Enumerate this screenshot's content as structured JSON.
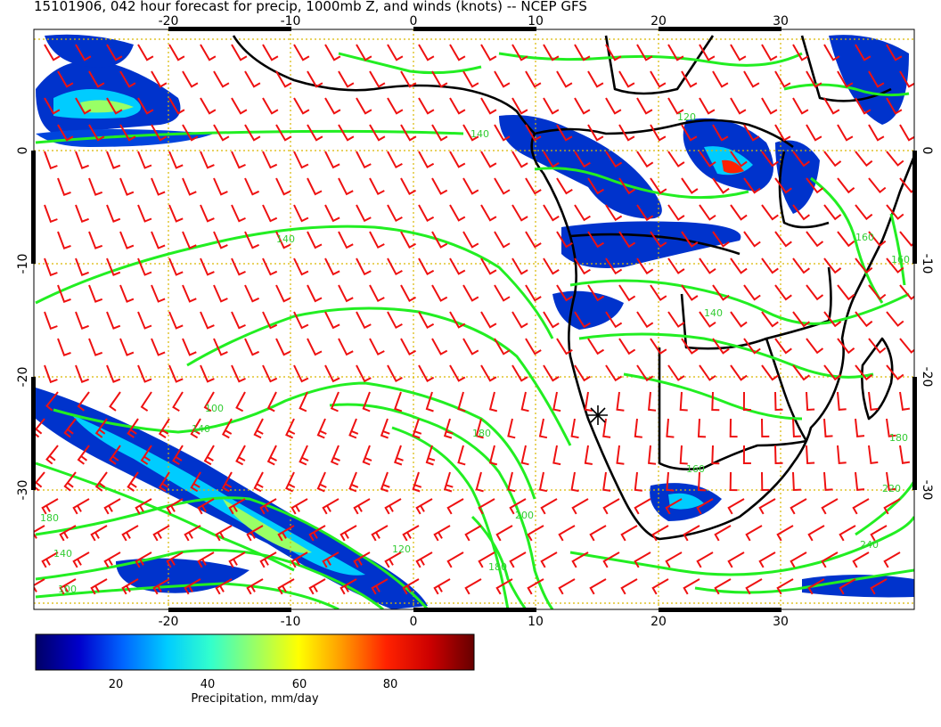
{
  "title": "15101906, 042 hour forecast for precip, 1000mb Z, and winds (knots) -- NCEP GFS",
  "colors": {
    "wind_barb": "#ee1111",
    "height_contour": "#22ee22",
    "coastline": "#000000",
    "graticule": "#d9b800",
    "colorbar": [
      "#000066",
      "#0000cc",
      "#0066ff",
      "#00ccff",
      "#33ffcc",
      "#99ff66",
      "#ffff00",
      "#ff9900",
      "#ff2200",
      "#cc0000",
      "#660000"
    ]
  },
  "map": {
    "projection": "cylindrical",
    "lon_range": [
      -30,
      40
    ],
    "lat_range": [
      -40,
      10
    ],
    "grid_lines": true
  },
  "axes": {
    "x_ticks": [
      "-20",
      "-10",
      "0",
      "10",
      "20",
      "30"
    ],
    "y_ticks": [
      "0",
      "-10",
      "-20",
      "-30"
    ]
  },
  "colorbar": {
    "label": "Precipitation, mm/day",
    "ticks": [
      "20",
      "40",
      "60",
      "80"
    ],
    "range": [
      0,
      98
    ]
  },
  "contour_labels": [
    "140",
    "120",
    "140",
    "160",
    "100",
    "140",
    "180",
    "200",
    "120",
    "180",
    "140",
    "100",
    "160",
    "180",
    "220",
    "240",
    "140",
    "160",
    "180"
  ],
  "marker": {
    "symbol": "asterisk",
    "lon": 15,
    "lat": -24
  }
}
